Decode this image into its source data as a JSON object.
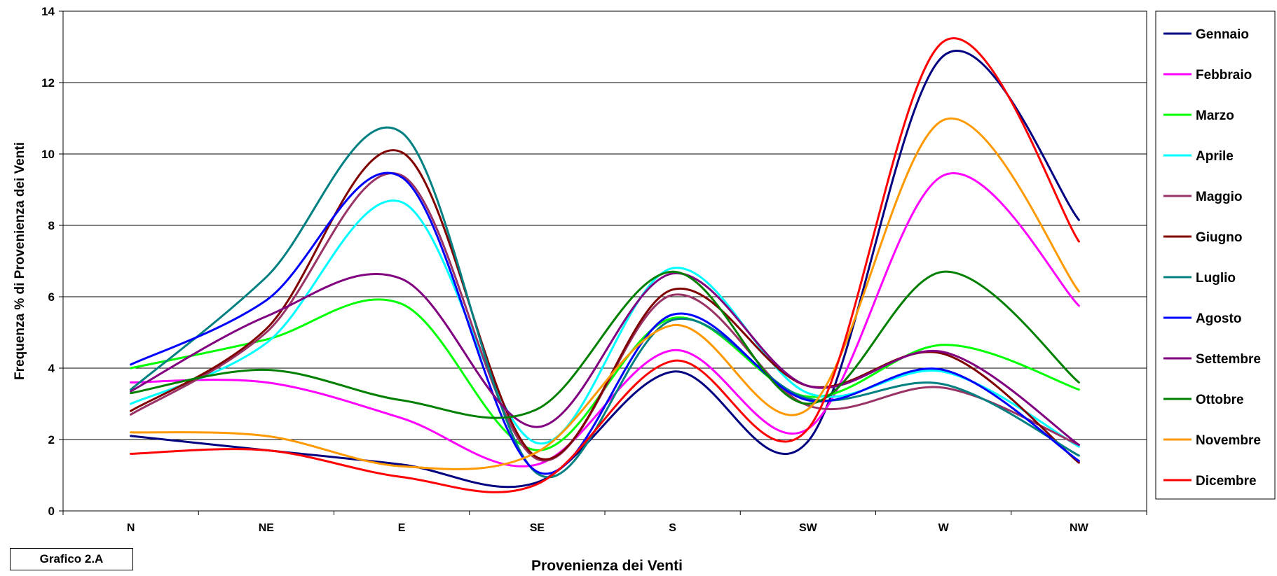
{
  "caption": "Grafico 2.A",
  "chart_data": {
    "type": "line",
    "title": "",
    "xlabel": "Provenienza dei Venti",
    "ylabel": "Frequenza % di Provenienza dei Venti",
    "categories": [
      "N",
      "NE",
      "E",
      "SE",
      "S",
      "SW",
      "W",
      "NW"
    ],
    "ylim": [
      0,
      14
    ],
    "yticks": [
      0,
      2,
      4,
      6,
      8,
      10,
      12,
      14
    ],
    "grid": true,
    "legend_position": "right",
    "smooth": true,
    "series": [
      {
        "name": "Gennaio",
        "color": "#000080",
        "values": [
          2.1,
          1.7,
          1.3,
          0.8,
          3.9,
          1.95,
          12.75,
          8.15
        ]
      },
      {
        "name": "Febbraio",
        "color": "#ff00ff",
        "values": [
          3.6,
          3.6,
          2.6,
          1.3,
          4.5,
          2.3,
          9.4,
          5.75
        ]
      },
      {
        "name": "Marzo",
        "color": "#00ff00",
        "values": [
          4.0,
          4.8,
          5.8,
          1.7,
          5.4,
          3.2,
          4.65,
          3.4
        ]
      },
      {
        "name": "Aprile",
        "color": "#00ffff",
        "values": [
          3.0,
          4.7,
          8.65,
          1.9,
          6.8,
          3.3,
          3.9,
          1.8
        ]
      },
      {
        "name": "Maggio",
        "color": "#993366",
        "values": [
          2.7,
          5.0,
          9.4,
          1.45,
          6.05,
          2.95,
          3.45,
          1.85
        ]
      },
      {
        "name": "Giugno",
        "color": "#800000",
        "values": [
          2.8,
          5.1,
          10.05,
          1.5,
          6.2,
          3.5,
          4.4,
          1.35
        ]
      },
      {
        "name": "Luglio",
        "color": "#008080",
        "values": [
          3.4,
          6.55,
          10.6,
          1.05,
          5.35,
          3.15,
          3.55,
          1.55
        ]
      },
      {
        "name": "Agosto",
        "color": "#0000ff",
        "values": [
          4.1,
          5.9,
          9.35,
          1.1,
          5.5,
          3.1,
          3.95,
          1.4
        ]
      },
      {
        "name": "Settembre",
        "color": "#800080",
        "values": [
          3.35,
          5.45,
          6.5,
          2.35,
          6.65,
          3.5,
          4.45,
          1.85
        ]
      },
      {
        "name": "Ottobre",
        "color": "#008000",
        "values": [
          3.3,
          3.95,
          3.1,
          2.85,
          6.7,
          3.0,
          6.7,
          3.6
        ]
      },
      {
        "name": "Novembre",
        "color": "#ff9900",
        "values": [
          2.2,
          2.1,
          1.25,
          1.65,
          5.2,
          2.85,
          10.95,
          6.15
        ]
      },
      {
        "name": "Dicembre",
        "color": "#ff0000",
        "values": [
          1.6,
          1.7,
          0.95,
          0.75,
          4.2,
          2.3,
          13.15,
          7.55
        ]
      }
    ]
  }
}
